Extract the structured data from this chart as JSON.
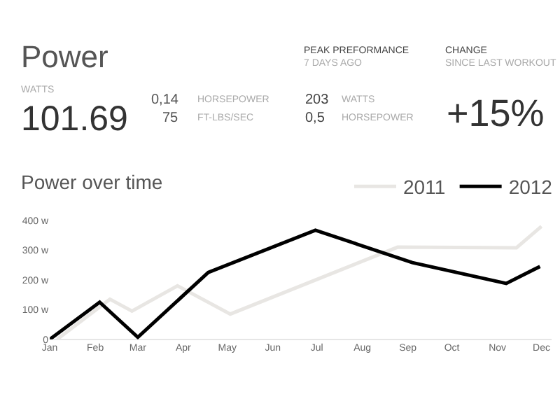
{
  "chart_data": [
    {
      "type": "other",
      "title": "Power",
      "annotations": [
        "WATTS",
        "101.69",
        "0,14",
        "HORSEPOWER",
        "75",
        "FT-LBS/SEC",
        "PEAK PREFORMANCE",
        "7 DAYS AGO",
        "203",
        "WATTS",
        "0,5",
        "HORSEPOWER",
        "CHANGE",
        "SINCE LAST WORKOUT",
        "+15%"
      ]
    },
    {
      "type": "line",
      "title": "Power over time",
      "legend": "top right",
      "series": [
        {
          "name": "2011",
          "color": "#e8e6e3",
          "x": [
            "--01-06",
            "--02-11",
            "--02-26",
            "--03-28",
            "--05-03",
            "--08-25",
            "--11-14",
            "--12-01"
          ],
          "values": [
            0,
            135,
            95,
            180,
            85,
            310,
            308,
            380
          ]
        },
        {
          "name": "2012",
          "color": "#000000",
          "x": [
            "--01-01",
            "--02-04",
            "--03-01",
            "--04-18",
            "--06-30",
            "--09-04",
            "--11-07",
            "--11-30"
          ],
          "values": [
            0,
            125,
            7,
            225,
            367,
            258,
            188,
            245
          ]
        }
      ],
      "xlim": [
        "--01-01",
        "--12-08"
      ],
      "xticks": [
        {
          "value": "--01-01",
          "label": "Jan"
        },
        {
          "value": "--02-01",
          "label": "Feb"
        },
        {
          "value": "--03-01",
          "label": "Mar"
        },
        {
          "value": "--04-01",
          "label": "Apr"
        },
        {
          "value": "--05-01",
          "label": "May"
        },
        {
          "value": "--06-01",
          "label": "Jun"
        },
        {
          "value": "--07-01",
          "label": "Jul"
        },
        {
          "value": "--08-01",
          "label": "Aug"
        },
        {
          "value": "--09-01",
          "label": "Sep"
        },
        {
          "value": "--10-01",
          "label": "Oct"
        },
        {
          "value": "--11-01",
          "label": "Nov"
        },
        {
          "value": "--12-01",
          "label": "Dec"
        }
      ],
      "ylim": [
        0,
        400
      ],
      "yticks": [
        0,
        {
          "value": 100,
          "label": "100 w"
        },
        {
          "value": 200,
          "label": "200 w"
        },
        {
          "value": 300,
          "label": "300 w"
        },
        {
          "value": 400,
          "label": "400 w"
        }
      ]
    }
  ]
}
